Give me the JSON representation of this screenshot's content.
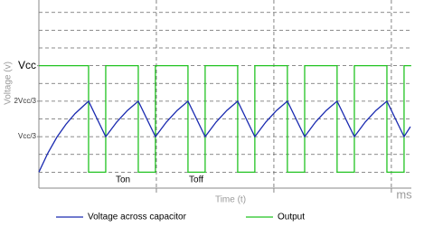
{
  "chart_data": {
    "type": "line",
    "y_label": "Voltage (v)",
    "x_label": "Time (t)",
    "x_unit": "ms",
    "annotations": [
      "Ton",
      "Toff"
    ],
    "xlim": [
      0,
      3.17
    ],
    "ylim": [
      -0.45,
      4.8
    ],
    "yticks": [
      {
        "value": 1,
        "label": "Vcc/3"
      },
      {
        "value": 2,
        "label": "2Vcc/3"
      },
      {
        "value": 3,
        "label": "Vcc"
      }
    ],
    "ygrid": [
      0,
      0.5,
      1,
      1.5,
      2,
      2.5,
      3,
      3.5,
      4,
      4.5
    ],
    "xgrid": [
      1,
      2,
      3
    ],
    "series": [
      {
        "name": "Voltage across capacitor",
        "color": "#1a2ab0",
        "x": [
          0,
          0.077,
          0.154,
          0.231,
          0.308,
          0.423,
          0.569,
          0.662,
          0.754,
          0.846,
          0.992,
          1.085,
          1.177,
          1.269,
          1.415,
          1.508,
          1.6,
          1.692,
          1.838,
          1.931,
          2.023,
          2.115,
          2.262,
          2.354,
          2.446,
          2.538,
          2.685,
          2.777,
          2.869,
          2.962,
          3.108,
          3.162
        ],
        "values": [
          0,
          0.54,
          0.99,
          1.35,
          1.65,
          2,
          1,
          1.41,
          1.74,
          2,
          1,
          1.41,
          1.74,
          2,
          1,
          1.41,
          1.74,
          2,
          1,
          1.41,
          1.74,
          2,
          1,
          1.41,
          1.74,
          2,
          1,
          1.41,
          1.74,
          2,
          1,
          1.28
        ]
      },
      {
        "name": "Output",
        "color": "#22c322",
        "x": [
          0,
          0.423,
          0.423,
          0.569,
          0.569,
          0.846,
          0.846,
          0.992,
          0.992,
          1.269,
          1.269,
          1.415,
          1.415,
          1.692,
          1.692,
          1.838,
          1.838,
          2.115,
          2.115,
          2.262,
          2.262,
          2.538,
          2.538,
          2.685,
          2.685,
          2.962,
          2.962,
          3.108,
          3.108,
          3.169
        ],
        "values": [
          3,
          3,
          0,
          0,
          3,
          3,
          0,
          0,
          3,
          3,
          0,
          0,
          3,
          3,
          0,
          0,
          3,
          3,
          0,
          0,
          3,
          3,
          0,
          0,
          3,
          3,
          0,
          0,
          3,
          3
        ]
      }
    ]
  }
}
